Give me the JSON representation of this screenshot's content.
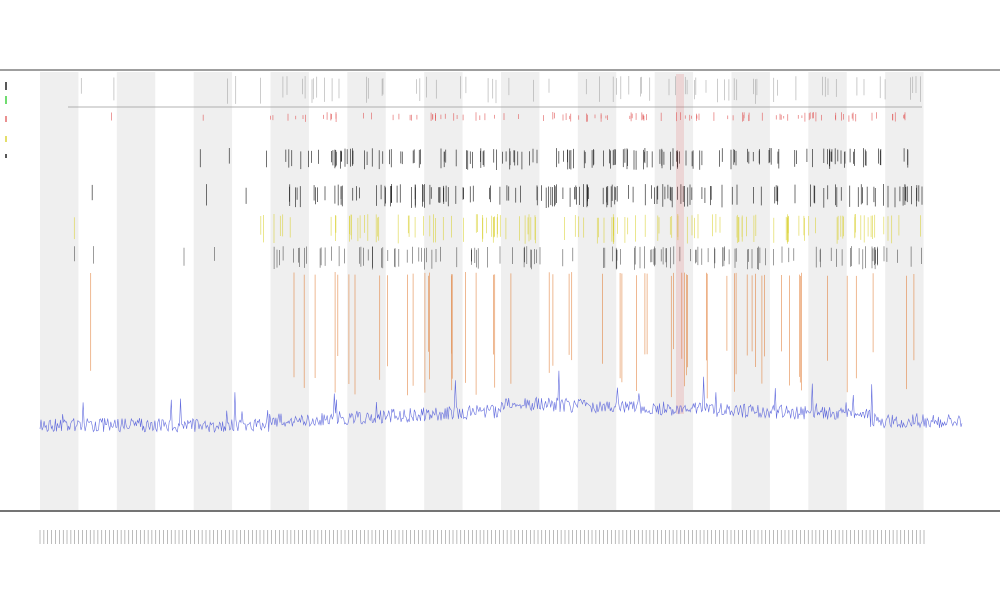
{
  "chart_data": {
    "type": "line",
    "title": "",
    "subtitle": "",
    "xlabel": "",
    "ylabel": "",
    "grid": false,
    "legend": {
      "placement": "top-left",
      "entries": []
    },
    "columns": 24,
    "x_tick_count": 230,
    "events": {
      "gray": {
        "color": "#9e9e9e",
        "count": 70
      },
      "red": {
        "color": "#e05a5a",
        "count": 110
      },
      "black1": {
        "color": "#111111",
        "count": 150
      },
      "black2": {
        "color": "#111111",
        "count": 150
      },
      "yellow": {
        "color": "#d8cf2a",
        "count": 120
      },
      "dark": {
        "color": "#222222",
        "count": 130
      },
      "orange": {
        "color": "#e07a30",
        "count": 60
      }
    },
    "series": [
      {
        "color": "#4a55d8",
        "baseline": 0.12,
        "points": 900
      }
    ],
    "colors": {
      "band": "#efefef",
      "axis": "#222222",
      "hline": "#9a9a9a",
      "highlight": "#e06060"
    }
  }
}
